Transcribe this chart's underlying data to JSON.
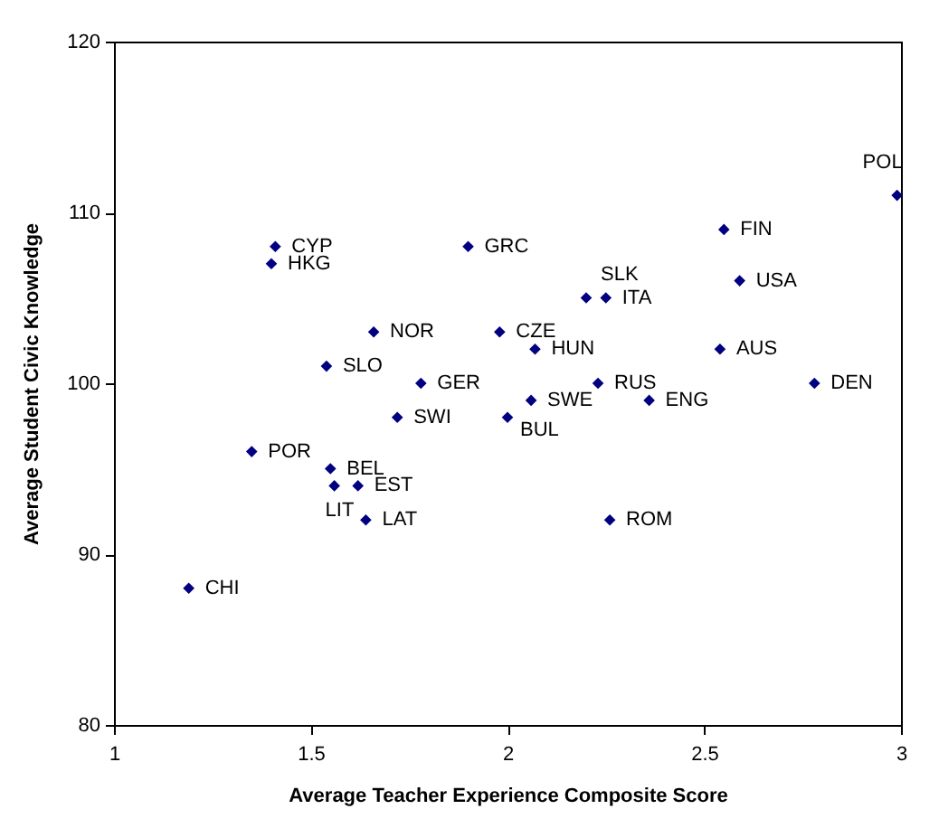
{
  "chart_data": {
    "type": "scatter",
    "xlabel": "Average Teacher Experience Composite Score",
    "ylabel": "Average Student Civic Knowledge",
    "x": [
      1.41,
      1.4,
      1.66,
      1.98,
      1.54,
      1.78,
      1.72,
      1.35,
      1.55,
      1.56,
      1.62,
      1.64,
      1.19,
      1.9,
      2.07,
      2.2,
      2.25,
      2.55,
      2.59,
      2.54,
      2.78,
      2.23,
      2.06,
      2.36,
      2.0,
      2.26,
      2.99
    ],
    "series": [
      {
        "color": "#000080",
        "values": [
          108,
          107,
          103,
          103,
          101,
          100,
          98,
          96,
          95,
          94,
          94,
          92,
          88,
          108,
          102,
          105,
          105,
          109,
          106,
          102,
          100,
          100,
          99,
          99,
          98,
          92,
          111
        ]
      }
    ],
    "annotations": [
      {
        "text": "CYP",
        "x": 1.41,
        "y": 108
      },
      {
        "text": "HKG",
        "x": 1.4,
        "y": 107
      },
      {
        "text": "NOR",
        "x": 1.66,
        "y": 103
      },
      {
        "text": "CZE",
        "x": 1.98,
        "y": 103
      },
      {
        "text": "SLO",
        "x": 1.54,
        "y": 101
      },
      {
        "text": "GER",
        "x": 1.78,
        "y": 100
      },
      {
        "text": "SWI",
        "x": 1.72,
        "y": 98
      },
      {
        "text": "POR",
        "x": 1.35,
        "y": 96
      },
      {
        "text": "BEL",
        "x": 1.55,
        "y": 95
      },
      {
        "text": "LIT",
        "x": 1.56,
        "y": 94
      },
      {
        "text": "EST",
        "x": 1.62,
        "y": 94
      },
      {
        "text": "LAT",
        "x": 1.64,
        "y": 92
      },
      {
        "text": "CHI",
        "x": 1.19,
        "y": 88
      },
      {
        "text": "GRC",
        "x": 1.9,
        "y": 108
      },
      {
        "text": "HUN",
        "x": 2.07,
        "y": 102
      },
      {
        "text": "SLK",
        "x": 2.2,
        "y": 105
      },
      {
        "text": "ITA",
        "x": 2.25,
        "y": 105
      },
      {
        "text": "FIN",
        "x": 2.55,
        "y": 109
      },
      {
        "text": "USA",
        "x": 2.59,
        "y": 106
      },
      {
        "text": "AUS",
        "x": 2.54,
        "y": 102
      },
      {
        "text": "DEN",
        "x": 2.78,
        "y": 100
      },
      {
        "text": "RUS",
        "x": 2.23,
        "y": 100
      },
      {
        "text": "SWE",
        "x": 2.06,
        "y": 99
      },
      {
        "text": "ENG",
        "x": 2.36,
        "y": 99
      },
      {
        "text": "BUL",
        "x": 2.0,
        "y": 98
      },
      {
        "text": "ROM",
        "x": 2.26,
        "y": 92
      },
      {
        "text": "POL",
        "x": 2.99,
        "y": 111
      }
    ],
    "xlim": [
      1,
      3
    ],
    "xticks": [
      1,
      1.5,
      2,
      2.5,
      3
    ],
    "ylim": [
      80,
      120
    ],
    "yticks": [
      80,
      90,
      100,
      110,
      120
    ],
    "grid": false,
    "legend": false,
    "marker": "diamond"
  }
}
